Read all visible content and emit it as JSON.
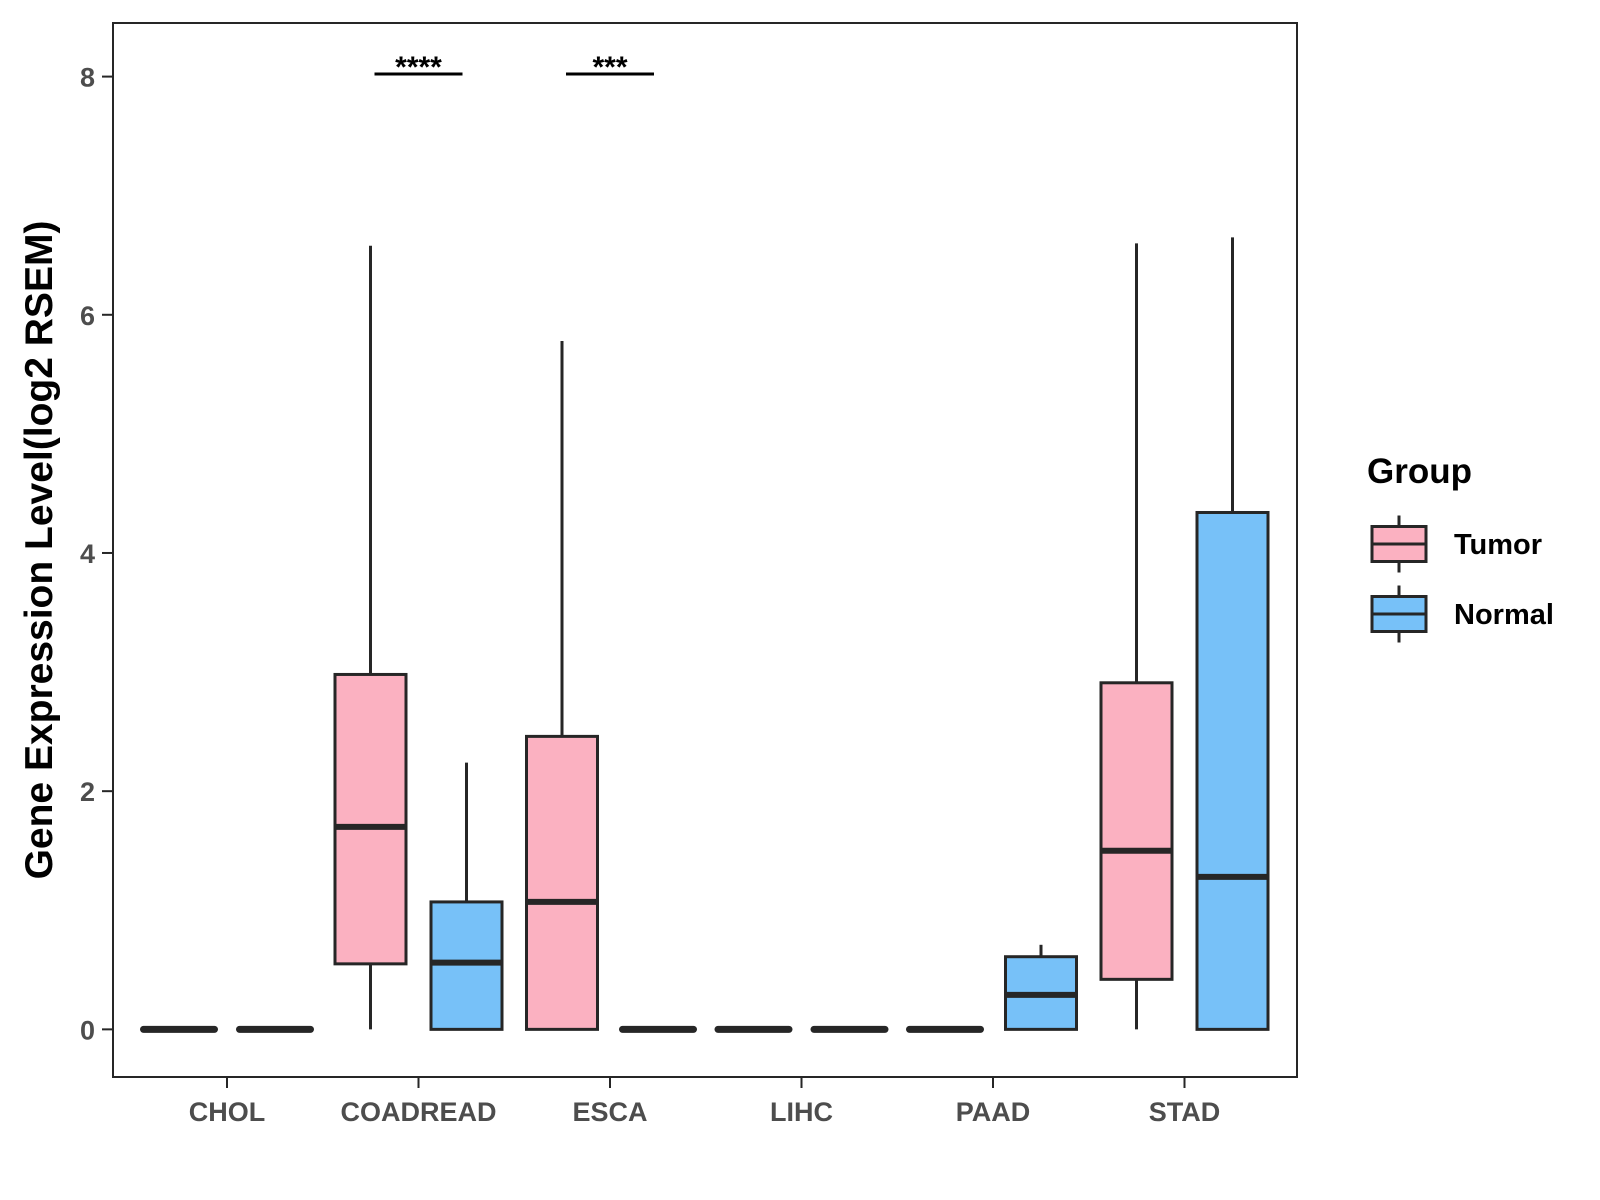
{
  "chart_data": {
    "type": "boxplot",
    "title": "",
    "xlabel": "",
    "ylabel": "Gene Expression Level(log2 RSEM)",
    "ylim": [
      -0.4,
      8.45
    ],
    "yticks": [
      0,
      2,
      4,
      6,
      8
    ],
    "grid": false,
    "legend_position": "right",
    "legend_title": "Group",
    "categories": [
      "CHOL",
      "COADREAD",
      "ESCA",
      "LIHC",
      "PAAD",
      "STAD"
    ],
    "series": [
      {
        "name": "Tumor",
        "color": "#FBB1C1",
        "boxes": [
          {
            "min": 0,
            "q1": 0,
            "median": 0,
            "q3": 0,
            "max": 0
          },
          {
            "min": 0,
            "q1": 0.55,
            "median": 1.7,
            "q3": 2.98,
            "max": 6.58
          },
          {
            "min": 0,
            "q1": 0,
            "median": 1.07,
            "q3": 2.46,
            "max": 5.78
          },
          {
            "min": 0,
            "q1": 0,
            "median": 0,
            "q3": 0,
            "max": 0
          },
          {
            "min": 0,
            "q1": 0,
            "median": 0,
            "q3": 0,
            "max": 0
          },
          {
            "min": 0,
            "q1": 0.42,
            "median": 1.5,
            "q3": 2.91,
            "max": 6.6
          }
        ]
      },
      {
        "name": "Normal",
        "color": "#77C1F8",
        "boxes": [
          {
            "min": 0,
            "q1": 0,
            "median": 0,
            "q3": 0,
            "max": 0
          },
          {
            "min": 0,
            "q1": 0,
            "median": 0.56,
            "q3": 1.07,
            "max": 2.24
          },
          {
            "min": 0,
            "q1": 0,
            "median": 0,
            "q3": 0,
            "max": 0
          },
          {
            "min": 0,
            "q1": 0,
            "median": 0,
            "q3": 0,
            "max": 0
          },
          {
            "min": 0,
            "q1": 0,
            "median": 0.29,
            "q3": 0.61,
            "max": 0.71
          },
          {
            "min": 0,
            "q1": 0,
            "median": 1.28,
            "q3": 4.34,
            "max": 6.65
          }
        ]
      }
    ],
    "annotations": [
      {
        "category": "COADREAD",
        "label": "****",
        "y": 8.03
      },
      {
        "category": "ESCA",
        "label": "***",
        "y": 8.03
      }
    ]
  }
}
